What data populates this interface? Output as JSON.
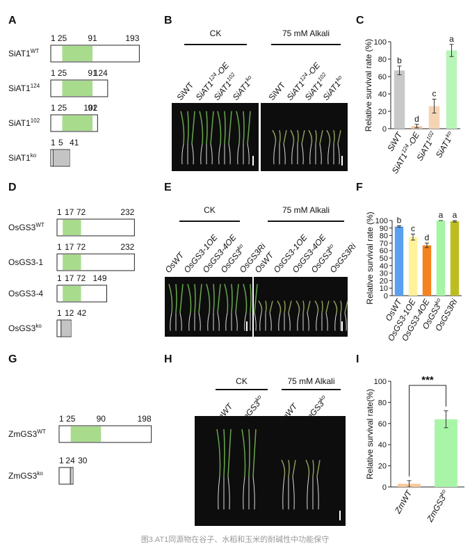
{
  "caption": "图3.AT1同源物在谷子、水稻和玉米的耐碱性中功能保守",
  "diagrams": [
    {
      "letter": "A",
      "proteins": [
        {
          "name": "SiAT1",
          "sup": "WT",
          "ticks": [
            1,
            25,
            91,
            193
          ]
        },
        {
          "name": "SiAT1",
          "sup": "124",
          "ticks": [
            1,
            25,
            91,
            124
          ]
        },
        {
          "name": "SiAT1",
          "sup": "102",
          "ticks": [
            1,
            25,
            91,
            102
          ]
        },
        {
          "name": "SiAT1",
          "sup": "ko",
          "ticks": [
            1,
            5,
            41
          ]
        }
      ]
    },
    {
      "letter": "D",
      "proteins": [
        {
          "name": "OsGS3",
          "sup": "WT",
          "ticks": [
            1,
            17,
            72,
            232
          ]
        },
        {
          "name": "OsGS3-1",
          "ticks": [
            1,
            17,
            72,
            232
          ]
        },
        {
          "name": "OsGS3-4",
          "ticks": [
            1,
            17,
            72,
            149
          ]
        },
        {
          "name": "OsGS3",
          "sup": "ko",
          "ticks": [
            1,
            12,
            42
          ]
        }
      ]
    },
    {
      "letter": "G",
      "proteins": [
        {
          "name": "ZmGS3",
          "sup": "WT",
          "ticks": [
            1,
            25,
            90,
            198
          ]
        },
        {
          "name": "ZmGS3",
          "sup": "ko",
          "ticks": [
            1,
            24,
            30
          ]
        }
      ]
    }
  ],
  "photos": [
    {
      "letter": "B",
      "groups": [
        "CK",
        "75 mM Alkali"
      ],
      "lines": [
        {
          "base": "SiWT"
        },
        {
          "base": "SiAT1",
          "sup": "124",
          "rest": "-OE"
        },
        {
          "base": "SiAT1",
          "sup": "102"
        },
        {
          "base": "SiAT1",
          "sup": "ko"
        }
      ]
    },
    {
      "letter": "E",
      "groups": [
        "CK",
        "75 mM Alkali"
      ],
      "lines": [
        {
          "base": "OsWT"
        },
        {
          "base": "OsGS3-1OE"
        },
        {
          "base": "OsGS3-4OE"
        },
        {
          "base": "OsGS3",
          "sup": "ko"
        },
        {
          "base": "OsGS3Ri"
        }
      ]
    },
    {
      "letter": "H",
      "groups": [
        "CK",
        "75 mM Alkali"
      ],
      "lines": [
        {
          "base": "ZmWT"
        },
        {
          "base": "ZmGS3",
          "sup": "ko"
        }
      ]
    }
  ],
  "chart_data": [
    {
      "type": "bar",
      "letter": "C",
      "y_label": "Relative survival rate (%)",
      "categories": [
        {
          "base": "SiWT"
        },
        {
          "base": "SiAT1",
          "sup": "124",
          "rest": "-OE"
        },
        {
          "base": "SiAT1",
          "sup": "102"
        },
        {
          "base": "SiAT1",
          "sup": "ko"
        }
      ],
      "values": [
        67,
        3,
        26,
        90
      ],
      "errors": [
        5,
        2,
        8,
        7
      ],
      "annotations": [
        "b",
        "d",
        "c",
        "a"
      ],
      "colors": [
        "#c8c8c8",
        "#f3c9a0",
        "#f5d4b3",
        "#b8f5b8"
      ],
      "ylim": [
        0,
        100
      ],
      "yticks": [
        0,
        20,
        40,
        60,
        80,
        100
      ]
    },
    {
      "type": "bar",
      "letter": "F",
      "y_label": "Relative survival rate (%)",
      "categories": [
        {
          "base": "OsWT"
        },
        {
          "base": "OsGS3-1OE"
        },
        {
          "base": "OsGS3-4OE"
        },
        {
          "base": "OsGS3",
          "sup": "ko"
        },
        {
          "base": "OsGS3Ri"
        }
      ],
      "values": [
        92,
        78,
        67,
        100,
        99
      ],
      "errors": [
        1,
        4,
        3,
        0,
        1
      ],
      "annotations": [
        "b",
        "c",
        "d",
        "a",
        "a"
      ],
      "colors": [
        "#5aa0f0",
        "#fff29a",
        "#f5821f",
        "#a4f5a4",
        "#bdbd22"
      ],
      "ylim": [
        0,
        100
      ],
      "yticks": [
        0,
        10,
        20,
        30,
        40,
        50,
        60,
        70,
        80,
        90,
        100
      ]
    },
    {
      "type": "bar",
      "letter": "I",
      "y_label": "Relative survival rate(%)",
      "categories": [
        {
          "base": "ZmWT"
        },
        {
          "base": "ZmGS3",
          "sup": "ko"
        }
      ],
      "values": [
        3,
        64
      ],
      "errors": [
        3,
        8
      ],
      "significance": "***",
      "colors": [
        "#f8c89a",
        "#a8f5a8"
      ],
      "ylim": [
        0,
        100
      ],
      "yticks": [
        0,
        20,
        40,
        60,
        80,
        100
      ]
    }
  ]
}
